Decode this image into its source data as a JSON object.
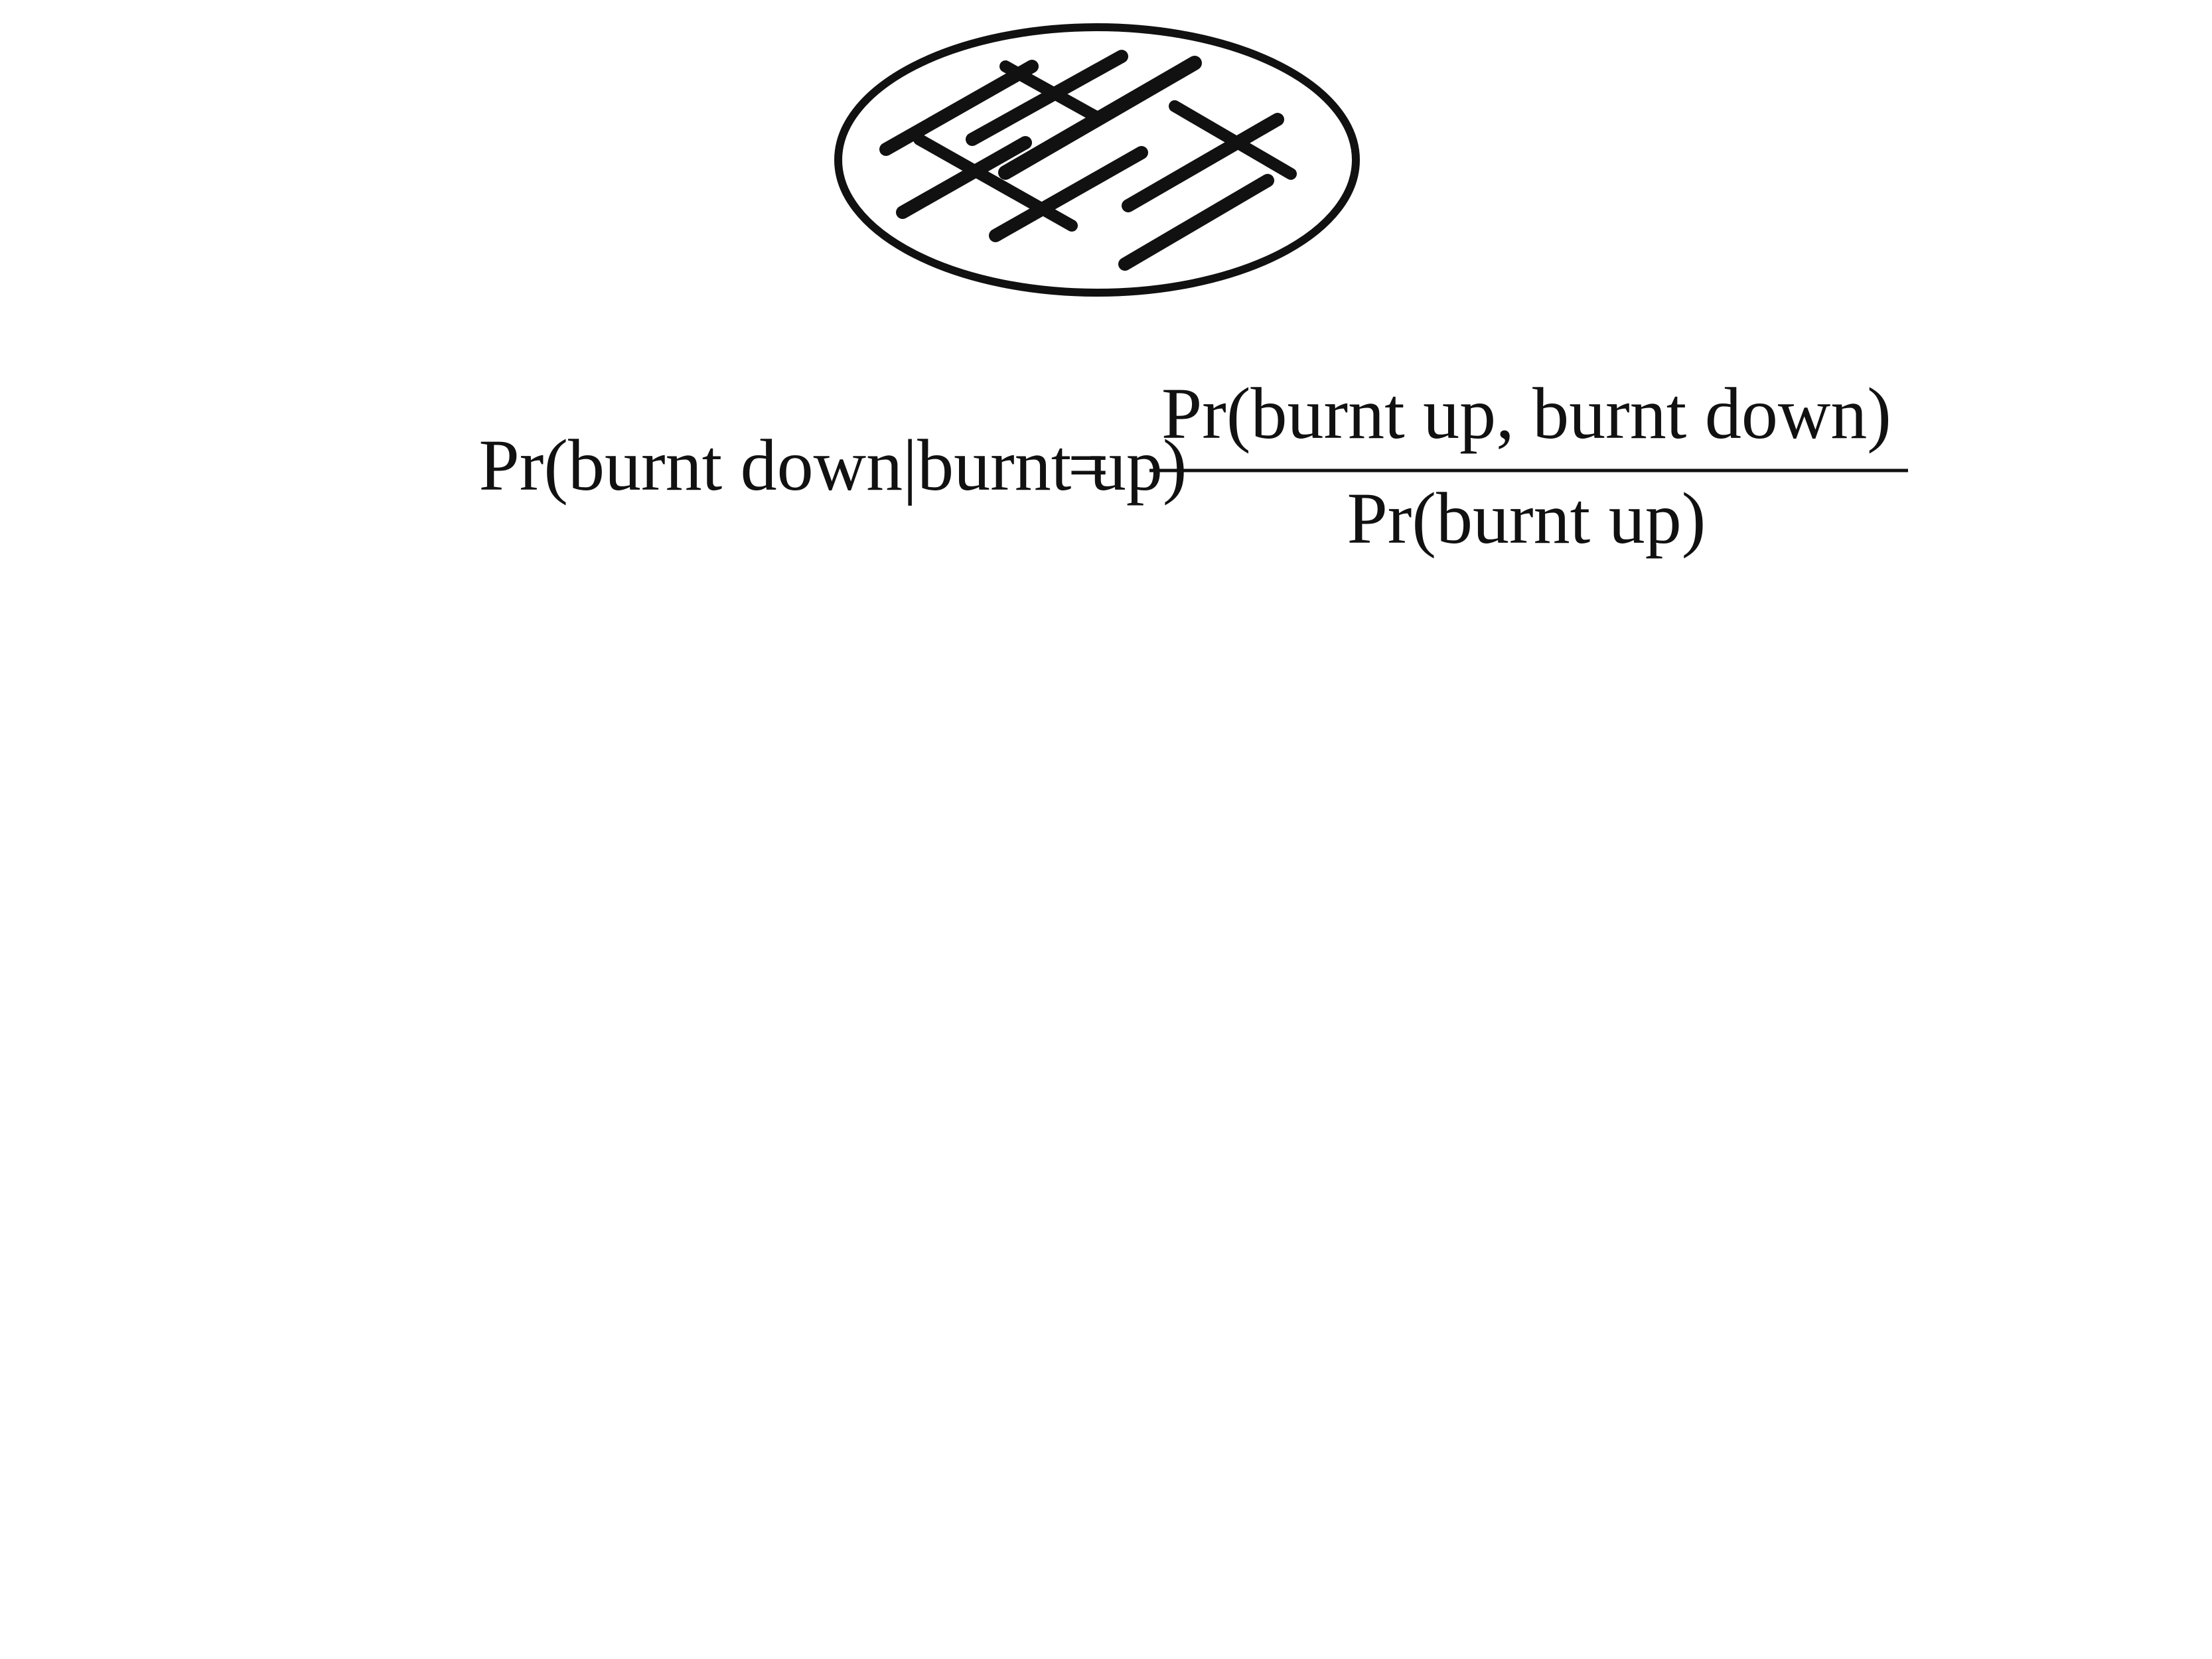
{
  "equation": {
    "lhs": "Pr(burnt down|burnt up)",
    "equals": "=",
    "numerator": "Pr(burnt up, burnt down)",
    "denominator": "Pr(burnt up)"
  },
  "illustration": {
    "icon": "burnt-pancake-icon",
    "ink_color": "#111111",
    "background_color": "#ffffff"
  }
}
